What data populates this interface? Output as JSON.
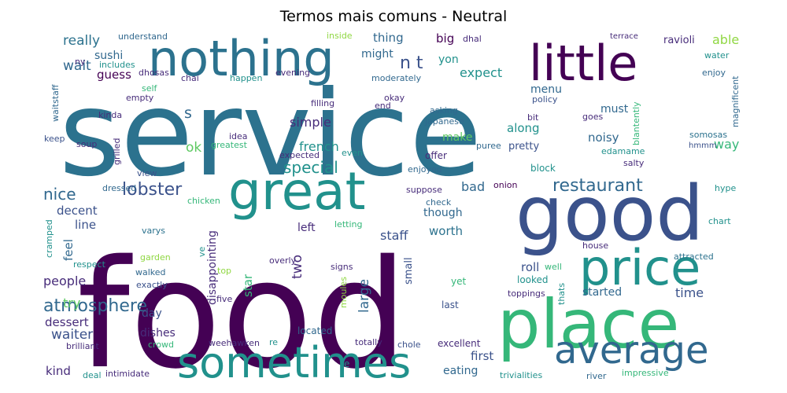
{
  "title": "Termos mais comuns - Neutral",
  "colors": {
    "purple": "#472c7a",
    "darkpurple": "#440154",
    "indigo": "#3b528b",
    "blue": "#31688e",
    "teal": "#21918c",
    "sea": "#2c728e",
    "green": "#35b779",
    "lime": "#5ec962",
    "yellowgreen": "#90d743",
    "yellow": "#c8e020"
  },
  "words": [
    "service",
    "food",
    "nothing",
    "great",
    "good",
    "little",
    "place",
    "price",
    "sometimes",
    "average",
    "lobster",
    "restaurant",
    "atmosphere",
    "nice",
    "people",
    "special",
    "french",
    "sushi",
    "really",
    "wait",
    "try",
    "waiter",
    "dessert",
    "simple",
    "staff",
    "expect",
    "make",
    "left",
    "two",
    "large",
    "worth",
    "though",
    "bad",
    "first",
    "eating",
    "time",
    "started",
    "day",
    "dishes",
    "five",
    "star",
    "disappointing",
    "thing",
    "might",
    "big",
    "guess",
    "menu",
    "along",
    "noisy",
    "must",
    "pretty",
    "way",
    "able",
    "ravioli",
    "terrace",
    "water",
    "enjoy",
    "magnificent",
    "somosas",
    "salty",
    "hmmm",
    "edamame",
    "block",
    "offer",
    "enjoyed",
    "onion",
    "hype",
    "chart",
    "house",
    "attracted",
    "roll",
    "well",
    "looked",
    "toppings",
    "exactly",
    "walked",
    "garden",
    "respect",
    "crowd",
    "brilliant",
    "kind",
    "deal",
    "intimidate",
    "located",
    "totally",
    "chole",
    "excellent",
    "trivialities",
    "river",
    "impressive",
    "weehawken",
    "yet",
    "last",
    "small",
    "signs",
    "moules",
    "letting",
    "overly",
    "varys",
    "chicken",
    "dressed",
    "decent",
    "line",
    "feel",
    "cramped",
    "view",
    "grilled",
    "soup",
    "keep",
    "waitstaff",
    "kinda",
    "empty",
    "self",
    "dhosas",
    "includes",
    "ny",
    "understand",
    "inside",
    "dhal",
    "chai",
    "evening",
    "happen",
    "moderately",
    "okay",
    "end",
    "filling",
    "asking",
    "japanese",
    "bit",
    "goes",
    "policy",
    "greatest",
    "idea",
    "ok",
    "expected",
    "even",
    "suppose",
    "check",
    "puree",
    "blantently",
    "top",
    "ve",
    "re",
    "e",
    "s",
    "yon",
    "n t",
    "thats"
  ]
}
